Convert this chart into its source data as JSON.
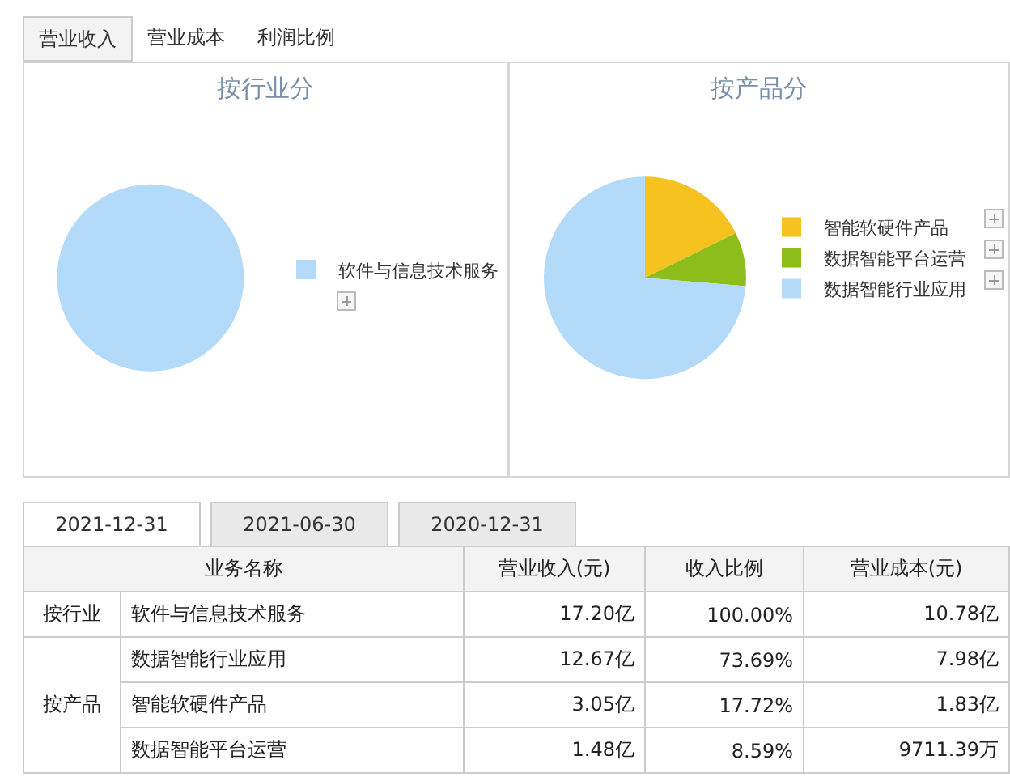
{
  "chart_data": [
    {
      "type": "pie",
      "title": "按行业分",
      "categories": [
        "软件与信息技术服务"
      ],
      "values": [
        100
      ],
      "colors": [
        "#b3daf8"
      ],
      "legend": "right"
    },
    {
      "type": "pie",
      "title": "按产品分",
      "categories": [
        "智能软硬件产品",
        "数据智能平台运营",
        "数据智能行业应用"
      ],
      "values": [
        17.72,
        8.59,
        73.69
      ],
      "colors": [
        "#f5c21f",
        "#8cbd1a",
        "#b3daf8"
      ],
      "legend": "right"
    },
    {
      "type": "other",
      "annotations": [
        "营业收入",
        "营业成本",
        "利润比例",
        "2021-12-31",
        "2021-06-30",
        "2020-12-31",
        "业务名称",
        "营业收入(元)",
        "收入比例",
        "营业成本(元)",
        "按行业",
        "软件与信息技术服务",
        "17.20亿",
        "100.00%",
        "10.78亿",
        "按产品",
        "数据智能行业应用",
        "12.67亿",
        "73.69%",
        "7.98亿",
        "智能软硬件产品",
        "3.05亿",
        "17.72%",
        "1.83亿",
        "数据智能平台运营",
        "1.48亿",
        "8.59%",
        "9711.39万"
      ]
    }
  ]
}
